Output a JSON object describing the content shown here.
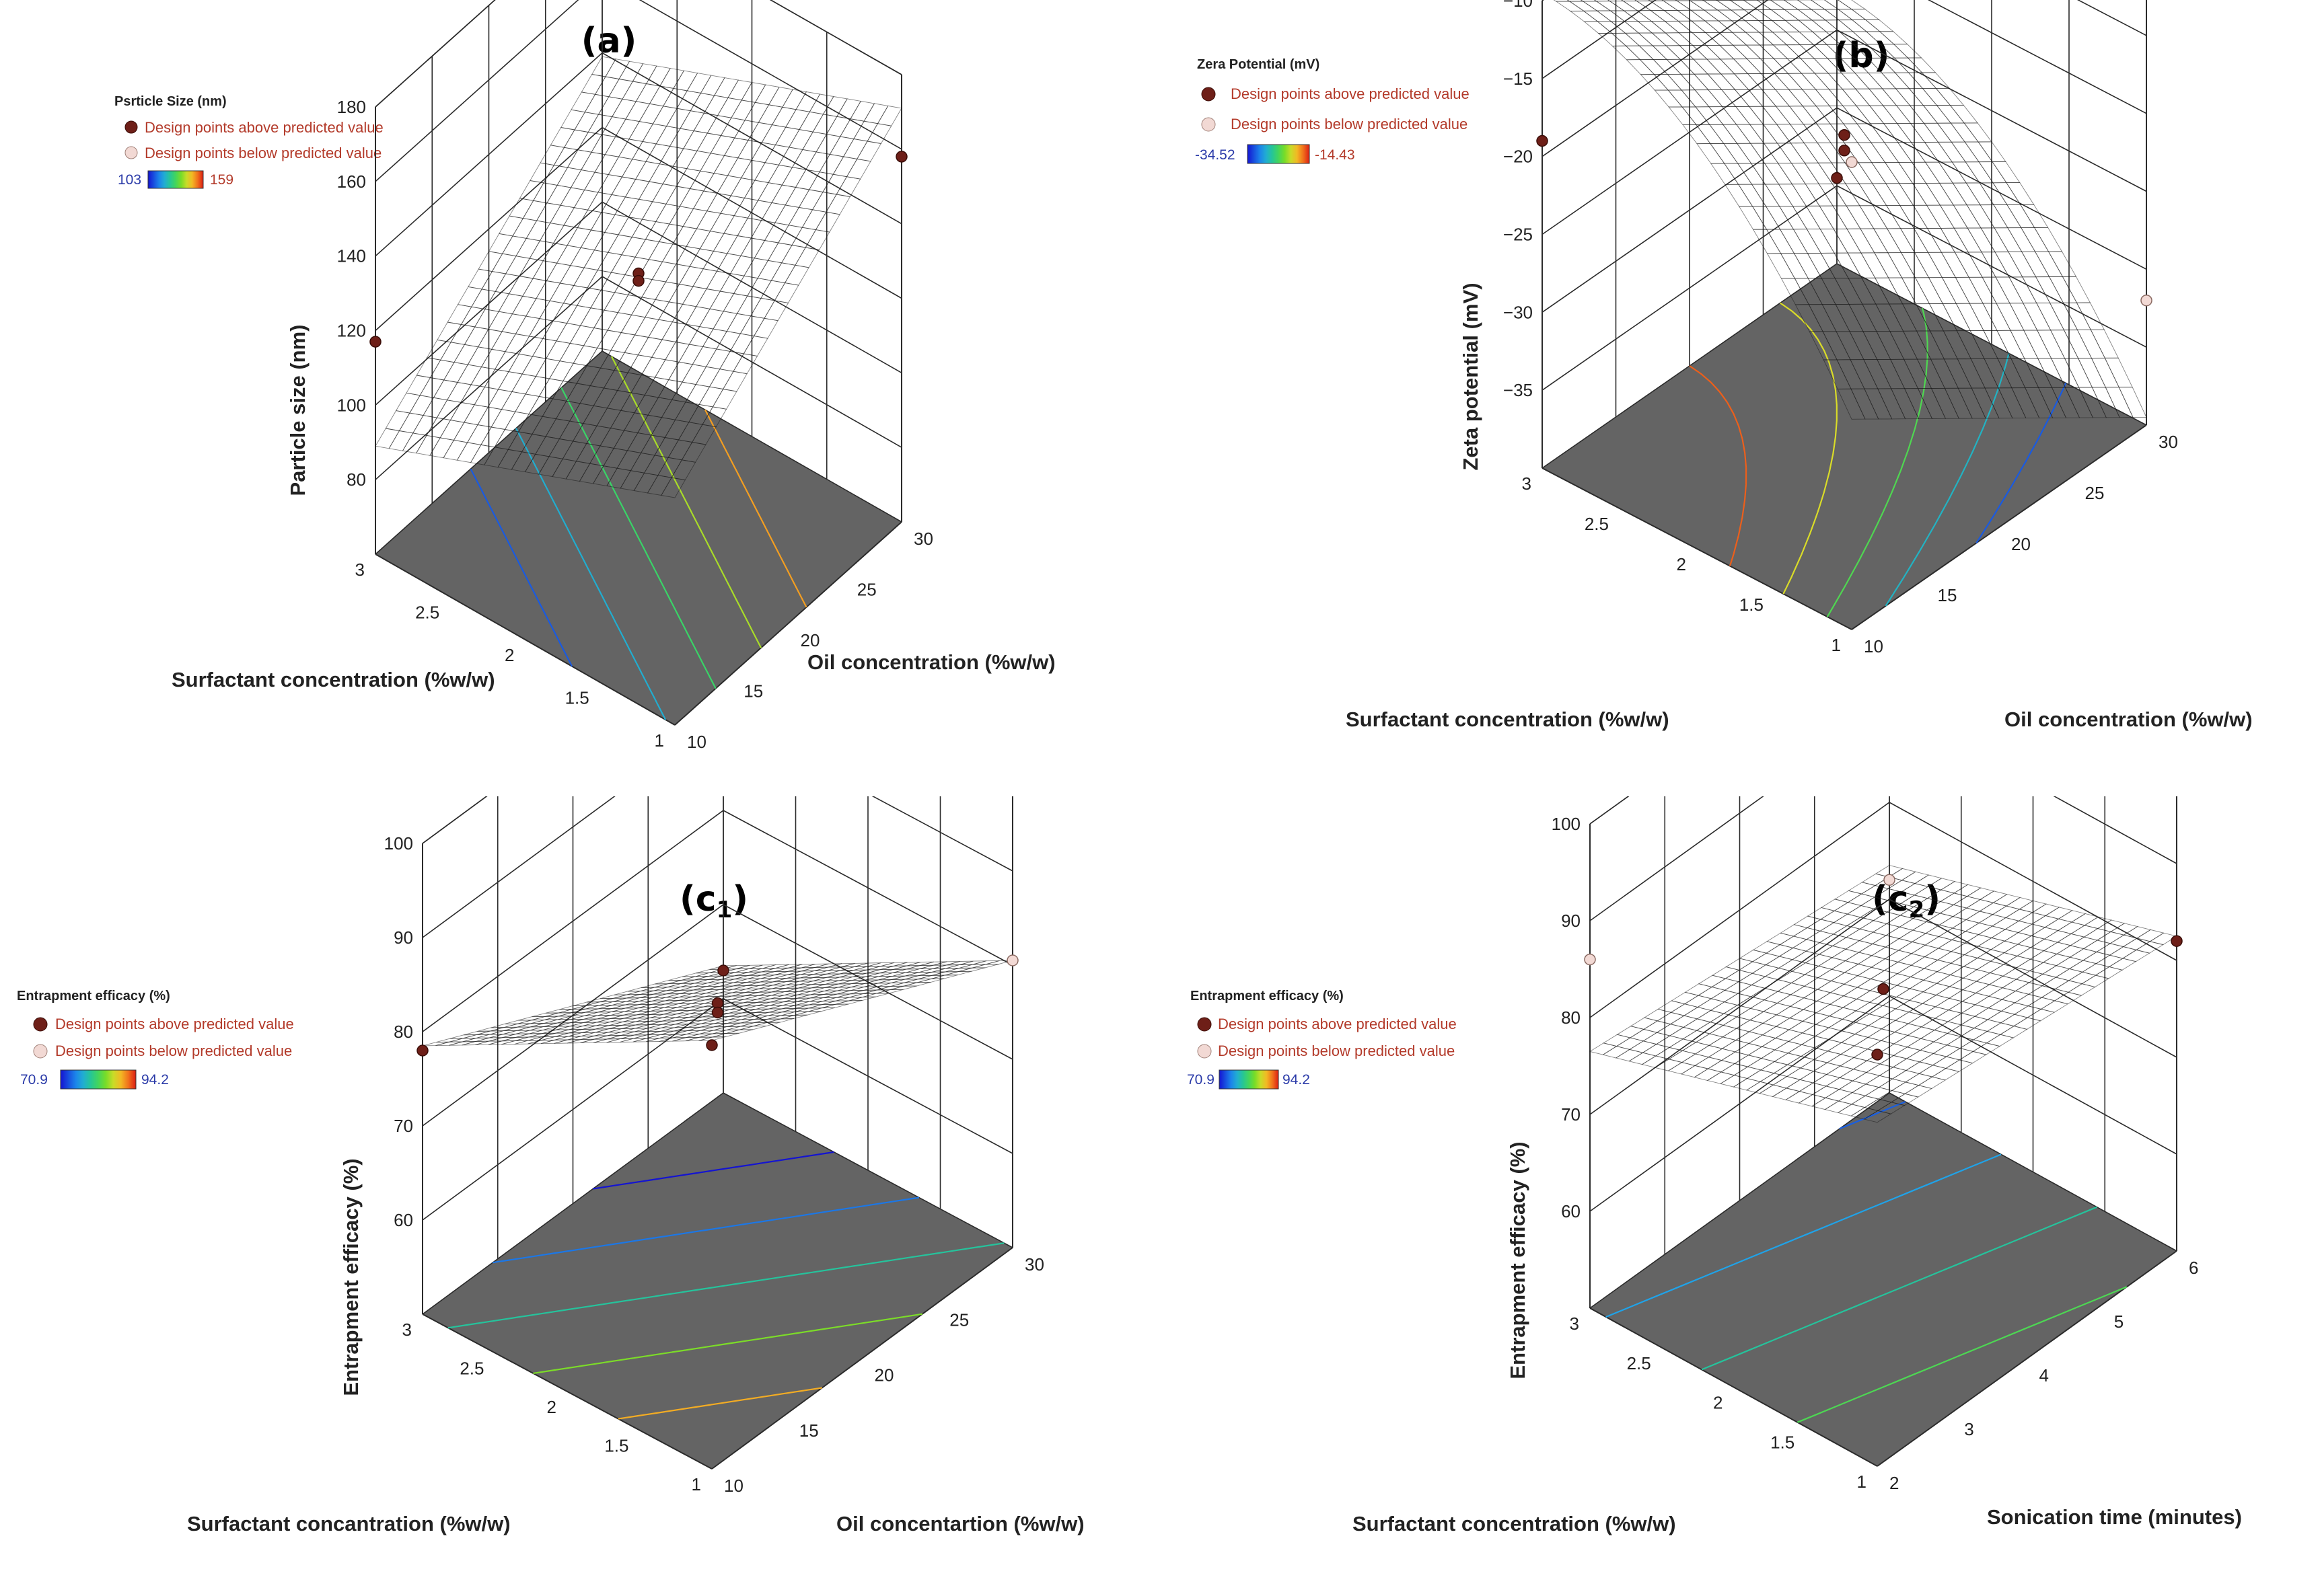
{
  "colors": {
    "floor": "#646464",
    "point_above": "#6e1f18",
    "point_below": "#f2d9d4",
    "legend_text": "#b33a2a",
    "legend_low": "#2a3aa8"
  },
  "chart_data": [
    {
      "id": "a",
      "type": "surface3d",
      "panel_label": "(a)",
      "legend": {
        "title": "Psrticle Size (nm)",
        "above": "Design points above predicted value",
        "below": "Design points below predicted value",
        "min": "103",
        "max": "159"
      },
      "xlabel": "Oil concentration (%w/w)",
      "ylabel": "Surfactant concentration (%w/w)",
      "zlabel": "Particle size (nm)",
      "x_range": [
        10,
        30
      ],
      "x_ticks": [
        "10",
        "15",
        "20",
        "25",
        "30"
      ],
      "y_range": [
        1,
        3
      ],
      "y_ticks": [
        "1",
        "1.5",
        "2",
        "2.5",
        "3"
      ],
      "z_range": [
        60,
        180
      ],
      "z_ticks": [
        "80",
        "100",
        "120",
        "140",
        "160",
        "180"
      ],
      "surface": {
        "a0": 130,
        "ax": 25,
        "ay": -16,
        "axy": 0,
        "axx": 0,
        "ayy": 0
      },
      "color_range": [
        103,
        159
      ],
      "design_points": [
        {
          "x": 10,
          "y": 3,
          "z": 117,
          "kind": "above"
        },
        {
          "x": 30,
          "y": 1,
          "z": 158,
          "kind": "above"
        },
        {
          "x": 20,
          "y": 2,
          "z": 131,
          "kind": "above"
        },
        {
          "x": 20,
          "y": 2,
          "z": 129,
          "kind": "above"
        }
      ],
      "contours": [
        110,
        120,
        130,
        140,
        150
      ]
    },
    {
      "id": "b",
      "type": "surface3d",
      "panel_label": "(b)",
      "legend": {
        "title": "Zera Potential (mV)",
        "above": "Design points above predicted value",
        "below": "Design points below predicted value",
        "min": "-34.52",
        "max": "-14.43"
      },
      "xlabel": "Oil concentration (%w/w)",
      "ylabel": "Surfactant concentration (%w/w)",
      "zlabel": "Zeta potential (mV)",
      "x_range": [
        10,
        30
      ],
      "x_ticks": [
        "10",
        "15",
        "20",
        "25",
        "30"
      ],
      "y_range": [
        1,
        3
      ],
      "y_ticks": [
        "1",
        "1.5",
        "2",
        "2.5",
        "3"
      ],
      "z_range": [
        -40,
        -10
      ],
      "z_ticks": [
        "-35",
        "-30",
        "-25",
        "-20",
        "-15",
        "-10"
      ],
      "surface": {
        "a0": -20.5,
        "ax": -6.5,
        "ay": 8.5,
        "axy": 0,
        "axx": 0,
        "ayy": -4
      },
      "color_range": [
        -34.52,
        -14.43
      ],
      "design_points": [
        {
          "x": 10,
          "y": 1,
          "z": -10,
          "kind": "below"
        },
        {
          "x": 10,
          "y": 3,
          "z": -19,
          "kind": "above"
        },
        {
          "x": 30,
          "y": 1,
          "z": -32,
          "kind": "below"
        },
        {
          "x": 30,
          "y": 3,
          "z": -34.5,
          "kind": "above"
        },
        {
          "x": 20,
          "y": 2,
          "z": -20,
          "kind": "above"
        },
        {
          "x": 20,
          "y": 2,
          "z": -21,
          "kind": "above"
        }
      ],
      "contours": [
        -32,
        -28,
        -24,
        -20,
        -16
      ]
    },
    {
      "id": "c1",
      "type": "surface3d",
      "panel_label": "(c",
      "panel_sub": "1",
      "legend": {
        "title": "Entrapment efficacy (%)",
        "above": "Design points above predicted value",
        "below": "Design points below predicted value",
        "min": "70.9",
        "max": "94.2"
      },
      "xlabel": "Oil concentartion (%w/w)",
      "ylabel": "Surfactant concantration (%w/w)",
      "zlabel": "Entrapment efficacy (%)",
      "x_range": [
        10,
        30
      ],
      "x_ticks": [
        "10",
        "15",
        "20",
        "25",
        "30"
      ],
      "y_range": [
        1,
        3
      ],
      "y_ticks": [
        "1",
        "1.5",
        "2",
        "2.5",
        "3"
      ],
      "z_range": [
        50,
        100
      ],
      "z_ticks": [
        "60",
        "70",
        "80",
        "90",
        "100"
      ],
      "surface": {
        "a0": 79.5,
        "ax": -7.5,
        "ay": -8.5,
        "axy": 0,
        "axx": 0,
        "ayy": 0
      },
      "color_range": [
        70.9,
        94.2
      ],
      "design_points": [
        {
          "x": 10,
          "y": 1,
          "z": 95,
          "kind": "above"
        },
        {
          "x": 10,
          "y": 3,
          "z": 78,
          "kind": "above"
        },
        {
          "x": 30,
          "y": 1,
          "z": 80.5,
          "kind": "below"
        },
        {
          "x": 30,
          "y": 3,
          "z": 63,
          "kind": "above"
        },
        {
          "x": 20,
          "y": 2,
          "z": 79.5,
          "kind": "above"
        },
        {
          "x": 20,
          "y": 2,
          "z": 78.5,
          "kind": "above"
        }
      ],
      "contours": [
        70,
        75,
        80,
        85,
        90
      ]
    },
    {
      "id": "c2",
      "type": "surface3d",
      "panel_label": "(c",
      "panel_sub": "2",
      "legend": {
        "title": "Entrapment efficacy (%)",
        "above": "Design points above predicted value",
        "below": "Design points below predicted value",
        "min": "70.9",
        "max": "94.2"
      },
      "xlabel": "Sonication time (minutes)",
      "ylabel": "Surfactant concentration (%w/w)",
      "zlabel": "Entrapment efficacy (%)",
      "x_range": [
        2,
        6
      ],
      "x_ticks": [
        "2",
        "3",
        "4",
        "5",
        "6"
      ],
      "y_range": [
        1,
        3
      ],
      "y_ticks": [
        "1",
        "1.5",
        "2",
        "2.5",
        "3"
      ],
      "z_range": [
        50,
        100
      ],
      "z_ticks": [
        "60",
        "70",
        "80",
        "90",
        "100"
      ],
      "surface": {
        "a0": 79.5,
        "ax": -1.5,
        "ay": -4.5,
        "axy": 0,
        "axx": 0,
        "ayy": 0
      },
      "color_range": [
        70.9,
        94.2
      ],
      "design_points": [
        {
          "x": 2,
          "y": 1,
          "z": 92.5,
          "kind": "above"
        },
        {
          "x": 2,
          "y": 3,
          "z": 86,
          "kind": "below"
        },
        {
          "x": 6,
          "y": 1,
          "z": 82,
          "kind": "above"
        },
        {
          "x": 6,
          "y": 3,
          "z": 72,
          "kind": "below"
        },
        {
          "x": 4,
          "y": 2,
          "z": 80,
          "kind": "above"
        }
      ],
      "contours": [
        74,
        77,
        80,
        83,
        86
      ]
    }
  ]
}
